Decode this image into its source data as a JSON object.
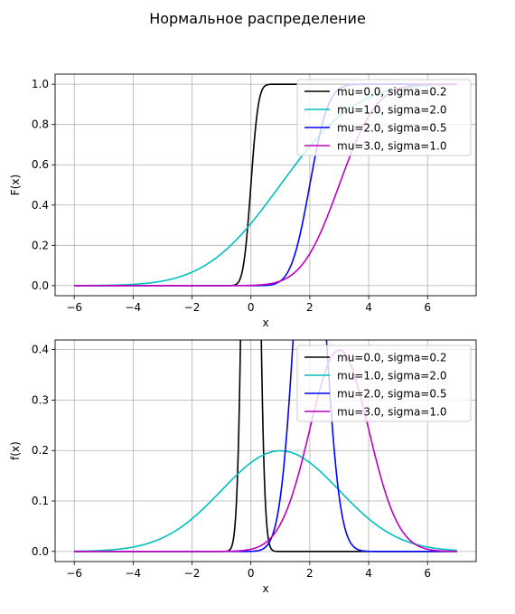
{
  "figure": {
    "title": "Нормальное распределение"
  },
  "chart_data": [
    {
      "type": "line",
      "function": "cdf",
      "xlabel": "x",
      "ylabel": "F(x)",
      "xlim": [
        -6.65,
        7.65
      ],
      "ylim": [
        -0.05,
        1.05
      ],
      "xticks": [
        -6,
        -4,
        -2,
        0,
        2,
        4,
        6
      ],
      "yticks": [
        0.0,
        0.2,
        0.4,
        0.6,
        0.8,
        1.0
      ],
      "ytick_labels": [
        "0.0",
        "0.2",
        "0.4",
        "0.6",
        "0.8",
        "1.0"
      ],
      "x_range": [
        -6,
        7
      ],
      "grid": true,
      "legend_position": "top-right",
      "series": [
        {
          "name": "mu=0.0, sigma=0.2",
          "mu": 0.0,
          "sigma": 0.2,
          "color": "#000000"
        },
        {
          "name": "mu=1.0, sigma=2.0",
          "mu": 1.0,
          "sigma": 2.0,
          "color": "#00bfbf"
        },
        {
          "name": "mu=2.0, sigma=0.5",
          "mu": 2.0,
          "sigma": 0.5,
          "color": "#0000ff"
        },
        {
          "name": "mu=3.0, sigma=1.0",
          "mu": 3.0,
          "sigma": 1.0,
          "color": "#bf00bf"
        }
      ]
    },
    {
      "type": "line",
      "function": "pdf",
      "xlabel": "x",
      "ylabel": "f(x)",
      "xlim": [
        -6.65,
        7.65
      ],
      "ylim": [
        -0.02,
        0.419
      ],
      "xticks": [
        -6,
        -4,
        -2,
        0,
        2,
        4,
        6
      ],
      "yticks": [
        0.0,
        0.1,
        0.2,
        0.3,
        0.4
      ],
      "ytick_labels": [
        "0.0",
        "0.1",
        "0.2",
        "0.3",
        "0.4"
      ],
      "x_range": [
        -6,
        7
      ],
      "grid": true,
      "legend_position": "top-right",
      "series": [
        {
          "name": "mu=0.0, sigma=0.2",
          "mu": 0.0,
          "sigma": 0.2,
          "color": "#000000"
        },
        {
          "name": "mu=1.0, sigma=2.0",
          "mu": 1.0,
          "sigma": 2.0,
          "color": "#00bfbf"
        },
        {
          "name": "mu=2.0, sigma=0.5",
          "mu": 2.0,
          "sigma": 0.5,
          "color": "#0000ff"
        },
        {
          "name": "mu=3.0, sigma=1.0",
          "mu": 3.0,
          "sigma": 1.0,
          "color": "#bf00bf"
        }
      ]
    }
  ]
}
